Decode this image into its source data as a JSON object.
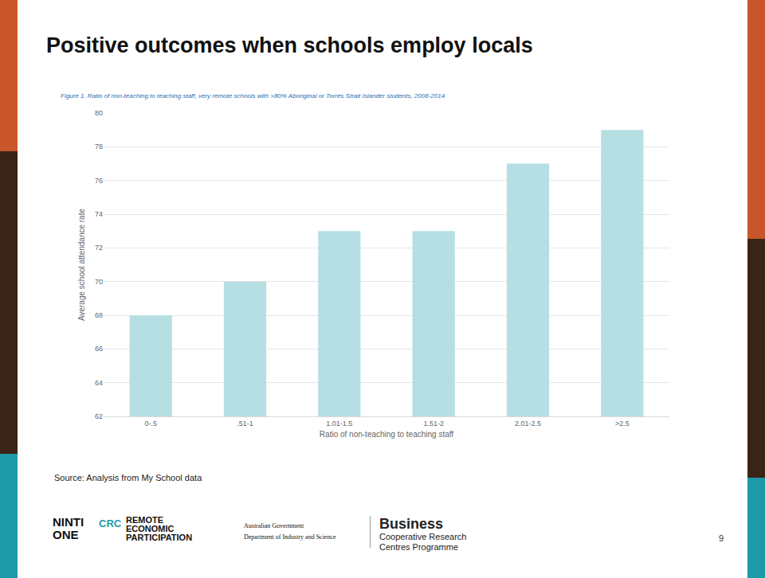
{
  "slide": {
    "title": "Positive outcomes when schools employ locals",
    "source": "Source: Analysis from My School data",
    "page": "9",
    "logos": {
      "ninti": [
        "NINTI",
        "ONE"
      ],
      "crc": "CRC",
      "remote": [
        "REMOTE",
        "ECONOMIC",
        "PARTICIPATION"
      ],
      "government": [
        "Australian Government",
        "Department of Industry and Science"
      ],
      "business": [
        "Business",
        "Cooperative Research",
        "Centres Programme"
      ]
    }
  },
  "chart_data": {
    "type": "bar",
    "title": "Figure 1. Ratio of non-teaching to teaching staff, very remote schools with >80% Aboriginal or Torres Strait Islander students, 2008-2014",
    "x_label": "Ratio of non-teaching to teaching staff",
    "y_label": "Average school attendance rate",
    "categories": [
      "0-.5",
      ".51-1",
      "1.01-1.5",
      "1.51-2",
      "2.01-2.5",
      ">2.5"
    ],
    "values": [
      68,
      70,
      73,
      73,
      77,
      79
    ],
    "color": "#b6dfe3",
    "ylim": [
      62,
      80
    ],
    "yticks": [
      62,
      64,
      66,
      68,
      70,
      72,
      74,
      76,
      78,
      80
    ],
    "grid": true
  }
}
